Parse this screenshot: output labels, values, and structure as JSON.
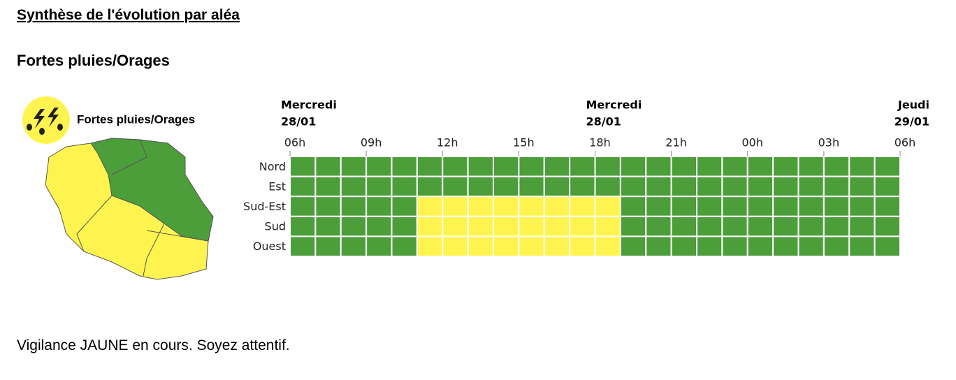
{
  "heading": "Synthèse de l'évolution par aléa",
  "section_title": "Fortes pluies/Orages",
  "legend_label": "Fortes pluies/Orages",
  "days": [
    {
      "name": "Mercredi",
      "date": "28/01"
    },
    {
      "name": "Mercredi",
      "date": "28/01"
    },
    {
      "name": "Jeudi",
      "date": "29/01"
    }
  ],
  "hours": [
    "06h",
    "09h",
    "12h",
    "15h",
    "18h",
    "21h",
    "00h",
    "03h",
    "06h"
  ],
  "level_colors": {
    "1": "#4c9e3a",
    "2": "#fff44f"
  },
  "rows": [
    {
      "name": "Nord",
      "levels": [
        1,
        1,
        1,
        1,
        1,
        1,
        1,
        1,
        1,
        1,
        1,
        1,
        1,
        1,
        1,
        1,
        1,
        1,
        1,
        1,
        1,
        1,
        1,
        1
      ]
    },
    {
      "name": "Est",
      "levels": [
        1,
        1,
        1,
        1,
        1,
        1,
        1,
        1,
        1,
        1,
        1,
        1,
        1,
        1,
        1,
        1,
        1,
        1,
        1,
        1,
        1,
        1,
        1,
        1
      ]
    },
    {
      "name": "Sud-Est",
      "levels": [
        1,
        1,
        1,
        1,
        1,
        2,
        2,
        2,
        2,
        2,
        2,
        2,
        2,
        1,
        1,
        1,
        1,
        1,
        1,
        1,
        1,
        1,
        1,
        1
      ]
    },
    {
      "name": "Sud",
      "levels": [
        1,
        1,
        1,
        1,
        1,
        2,
        2,
        2,
        2,
        2,
        2,
        2,
        2,
        1,
        1,
        1,
        1,
        1,
        1,
        1,
        1,
        1,
        1,
        1
      ]
    },
    {
      "name": "Ouest",
      "levels": [
        1,
        1,
        1,
        1,
        1,
        2,
        2,
        2,
        2,
        2,
        2,
        2,
        2,
        1,
        1,
        1,
        1,
        1,
        1,
        1,
        1,
        1,
        1,
        1
      ]
    }
  ],
  "message": "Vigilance JAUNE en cours. Soyez attentif."
}
